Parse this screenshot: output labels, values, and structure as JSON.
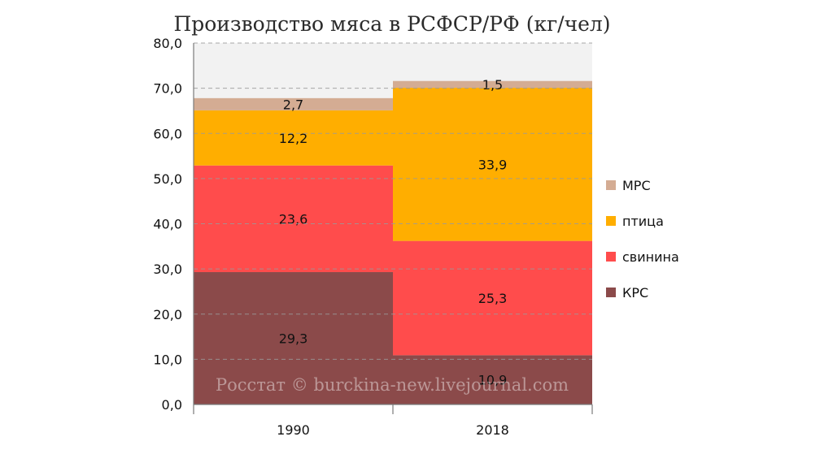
{
  "chart_data": {
    "type": "bar",
    "stacked": true,
    "title": "Производство мяса в РСФСР/РФ (кг/чел)",
    "categories": [
      "1990",
      "2018"
    ],
    "ylim": [
      0,
      80
    ],
    "yticks": [
      "0,0",
      "10,0",
      "20,0",
      "30,0",
      "40,0",
      "50,0",
      "60,0",
      "70,0",
      "80,0"
    ],
    "grid": true,
    "legend_position": "right",
    "series": [
      {
        "name": "КРС",
        "color": "#8b4a4a",
        "values": [
          29.3,
          10.9
        ],
        "labels": [
          "29,3",
          "10,9"
        ]
      },
      {
        "name": "свинина",
        "color": "#ff4c4c",
        "values": [
          23.6,
          25.3
        ],
        "labels": [
          "23,6",
          "25,3"
        ]
      },
      {
        "name": "птица",
        "color": "#ffae00",
        "values": [
          12.2,
          33.9
        ],
        "labels": [
          "12,2",
          "33,9"
        ]
      },
      {
        "name": "МРС",
        "color": "#d4ac93",
        "values": [
          2.7,
          1.5
        ],
        "labels": [
          "2,7",
          "1,5"
        ]
      }
    ],
    "legend_order": [
      "МРС",
      "птица",
      "свинина",
      "КРС"
    ],
    "plot_background": "#f2f2f2",
    "watermark": "Росстат © burckina-new.livejournal.com"
  }
}
